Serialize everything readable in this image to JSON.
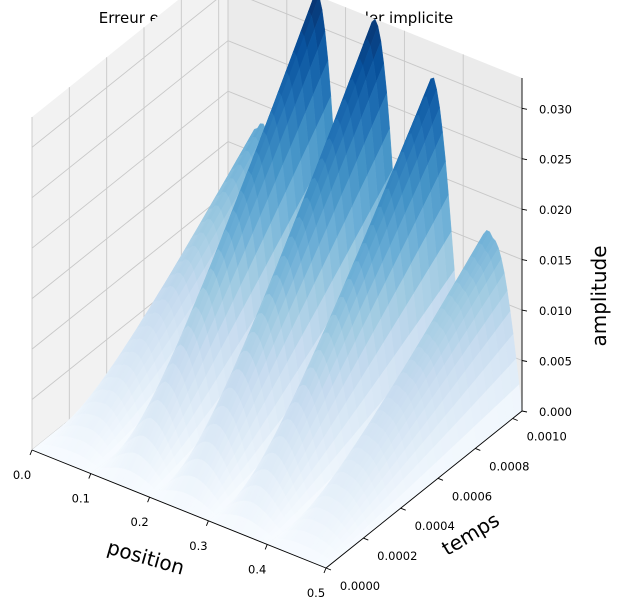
{
  "chart_data": {
    "type": "surface",
    "title": "Erreur en fonction de x et t pour Euler implicite",
    "xlabel": "position",
    "ylabel": "temps",
    "zlabel": "amplitude",
    "xlim": [
      0.0,
      0.5
    ],
    "ylim": [
      0.0,
      0.00105
    ],
    "zlim": [
      0.0,
      0.033
    ],
    "xticks": [
      "0.0",
      "0.1",
      "0.2",
      "0.3",
      "0.4",
      "0.5"
    ],
    "yticks": [
      "0.0000",
      "0.0002",
      "0.0004",
      "0.0006",
      "0.0008",
      "0.0010"
    ],
    "zticks": [
      "0.000",
      "0.005",
      "0.010",
      "0.015",
      "0.020",
      "0.025",
      "0.030"
    ],
    "colormap": "Blues",
    "grid": true,
    "surface_description": "z(x,t) = A(x) * (t / tmax)^1.1 * |sin(pi * x / 0.1)|, oscillating in x with 5 humps",
    "peak_amplitudes": [
      {
        "x": 0.05,
        "z_max": 0.0175
      },
      {
        "x": 0.15,
        "z_max": 0.0335
      },
      {
        "x": 0.25,
        "z_max": 0.033
      },
      {
        "x": 0.35,
        "z_max": 0.0295
      },
      {
        "x": 0.45,
        "z_max": 0.016
      }
    ]
  }
}
